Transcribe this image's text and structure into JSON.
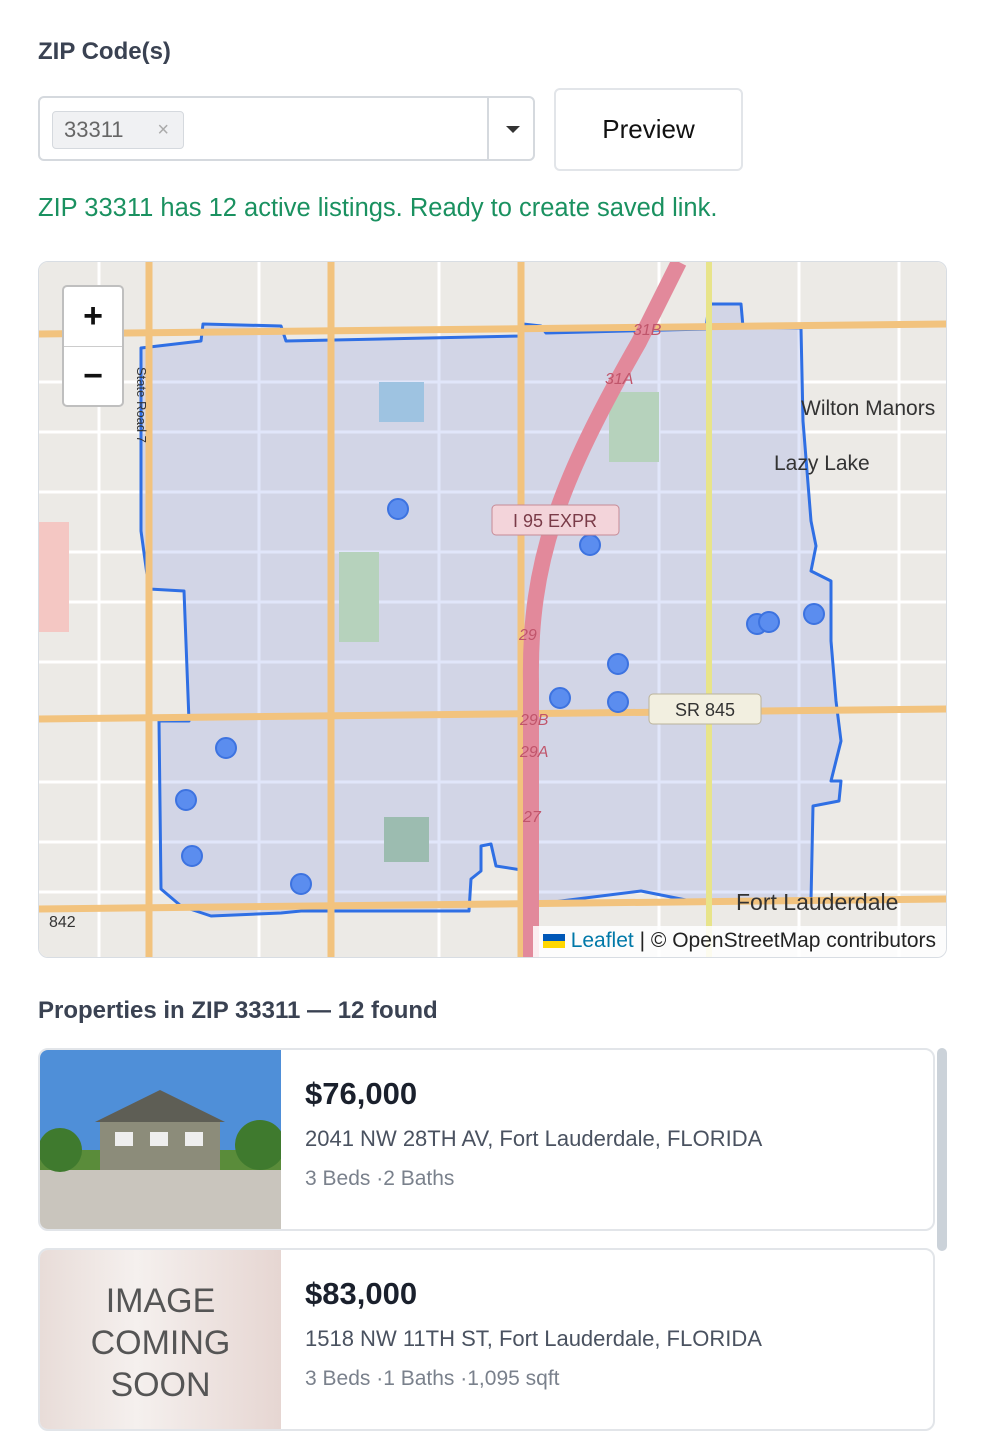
{
  "form": {
    "label": "ZIP Code(s)",
    "selected": [
      "33311"
    ],
    "remove_icon": "×",
    "button": "Preview",
    "status": "ZIP 33311 has 12 active listings. Ready to create saved link."
  },
  "map": {
    "zoom_in": "+",
    "zoom_out": "−",
    "attribution_link": "Leaflet",
    "attribution_text": "| © OpenStreetMap contributors",
    "labels": [
      "Wilton Manors",
      "Lazy Lake",
      "I 95 EXPR",
      "SR 845",
      "Fort Lauderdale",
      "842",
      "29",
      "29B",
      "29A",
      "27",
      "31A",
      "31B",
      "State Road 7"
    ]
  },
  "results": {
    "heading": "Properties in ZIP 33311 — 12 found",
    "listings": [
      {
        "price": "$76,000",
        "address": "2041 NW 28TH AV, Fort Lauderdale, FLORIDA",
        "details": "3 Beds ·2 Baths"
      },
      {
        "image_text": [
          "IMAGE",
          "COMING",
          "SOON"
        ],
        "price": "$83,000",
        "address": "1518 NW 11TH ST, Fort Lauderdale, FLORIDA",
        "details": "3 Beds ·1 Baths ·1,095 sqft"
      }
    ]
  }
}
